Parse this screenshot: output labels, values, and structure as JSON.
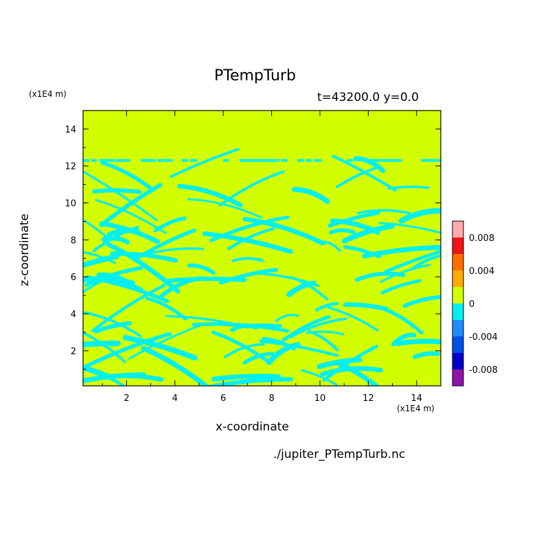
{
  "chart_data": {
    "type": "heatmap",
    "title": "PTempTurb",
    "subtitle": "t=43200.0  y=0.0",
    "xlabel": "x-coordinate",
    "ylabel": "z-coordinate",
    "x_unit": "(x1E4 m)",
    "y_unit": "(x1E4 m)",
    "xlim": [
      0.2,
      15.0
    ],
    "ylim": [
      0.1,
      15.0
    ],
    "x_ticks": [
      2,
      4,
      6,
      8,
      10,
      12,
      14
    ],
    "y_ticks": [
      2,
      4,
      6,
      8,
      10,
      12,
      14
    ],
    "colorbar": {
      "levels": [
        -0.01,
        -0.008,
        -0.006,
        -0.004,
        -0.002,
        0,
        0.002,
        0.004,
        0.006,
        0.008,
        0.01
      ],
      "colors": [
        "#8e14a8",
        "#0000c8",
        "#0050e6",
        "#1e8cff",
        "#00f0f0",
        "#d2ff00",
        "#ffaa00",
        "#ff6e00",
        "#f01414",
        "#ffaaaa"
      ],
      "tick_labels": [
        "0.008",
        "0.004",
        "0",
        "-0.004",
        "-0.008"
      ],
      "tick_values": [
        0.008,
        0.004,
        0,
        -0.004,
        -0.008
      ]
    },
    "field_description_value": "turbulent potential temperature perturbation, values near 0 (yellow, 0 to 0.002) with cyan negative regions (-0.002 to 0) in bands between z=0 and z=12.5",
    "bands": [
      {
        "zmin": 0.1,
        "zmax": 3.5,
        "fraction_negative": 0.45
      },
      {
        "zmin": 3.5,
        "zmax": 6.5,
        "fraction_negative": 0.3
      },
      {
        "zmin": 6.5,
        "zmax": 9.3,
        "fraction_negative": 0.35
      },
      {
        "zmin": 9.3,
        "zmax": 12.5,
        "fraction_negative": 0.1
      }
    ]
  },
  "footer": {
    "filename": "./jupiter_PTempTurb.nc"
  }
}
